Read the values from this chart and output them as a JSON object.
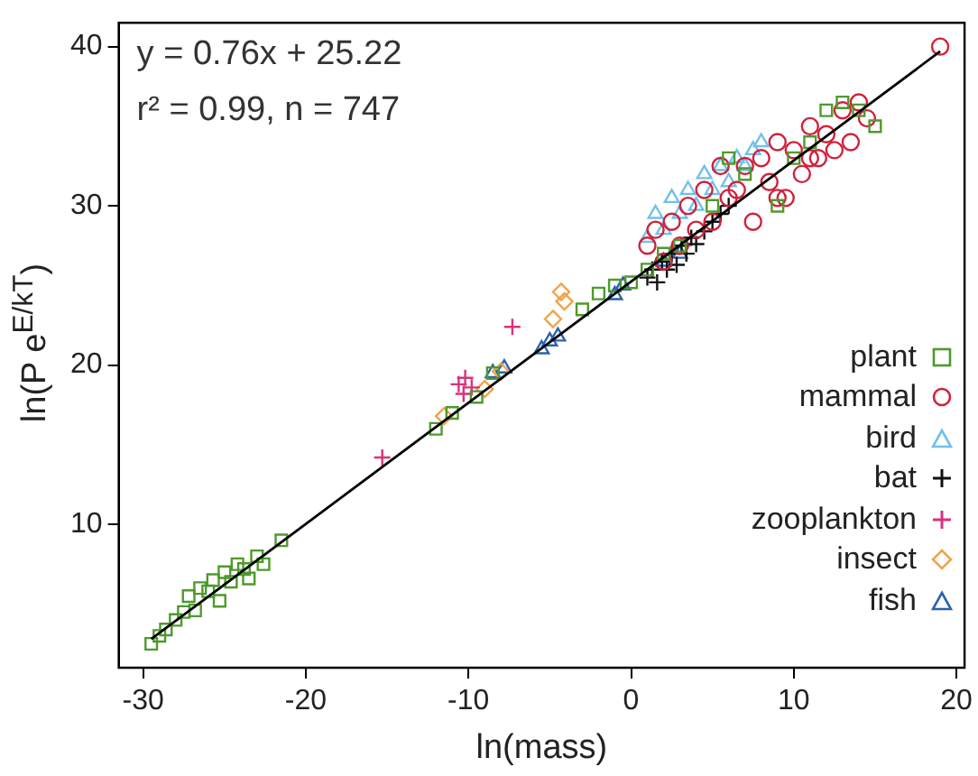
{
  "chart_data": {
    "type": "scatter",
    "xlabel": "ln(mass)",
    "ylabel": "ln(P e$^{E/kT}$)",
    "xlim": [
      -31.5,
      20.5
    ],
    "ylim": [
      1,
      41.5
    ],
    "xticks": [
      -30,
      -20,
      -10,
      0,
      10,
      20
    ],
    "yticks": [
      10,
      20,
      30,
      40
    ],
    "grid": false,
    "legend": "bottom right",
    "annotations": [
      "y = 0.76x + 25.22",
      "r² = 0.99, n = 747"
    ],
    "series": [
      {
        "name": "plant",
        "color": "#4e9a2c",
        "marker": "square",
        "x": [
          -29.5,
          -29,
          -28.6,
          -28,
          -27.5,
          -27.2,
          -26.8,
          -26.5,
          -26,
          -25.7,
          -25.3,
          -25,
          -24.6,
          -24.2,
          -23.8,
          -23.5,
          -23,
          -22.6,
          -21.5,
          -12,
          -11,
          -9.5,
          -8.5,
          -3,
          -2,
          -1,
          0,
          1,
          2,
          3,
          5,
          6,
          7,
          9,
          10,
          11,
          12,
          13,
          14,
          15
        ],
        "values": [
          2.5,
          3,
          3.4,
          4,
          4.5,
          5.5,
          4.6,
          6,
          5.8,
          6.5,
          5.2,
          7,
          6.4,
          7.5,
          7.2,
          6.6,
          8,
          7.5,
          9,
          16,
          17,
          18,
          19.5,
          23.5,
          24.5,
          25,
          25.2,
          26,
          27,
          27.5,
          30,
          33,
          32,
          30,
          33,
          34,
          36,
          36.5,
          36,
          35
        ]
      },
      {
        "name": "mammal",
        "color": "#d0213c",
        "marker": "circle",
        "x": [
          1,
          1.5,
          2,
          2.5,
          3,
          3.5,
          4,
          4.5,
          5,
          5.5,
          6,
          6.5,
          7,
          7.5,
          8,
          8.5,
          9,
          9.5,
          10,
          10.5,
          11,
          11.5,
          12,
          12.5,
          13,
          13.5,
          14,
          14.5,
          9,
          11,
          19
        ],
        "values": [
          27.5,
          28.5,
          26.5,
          29,
          27.5,
          30,
          28.5,
          31,
          29,
          32.5,
          30.5,
          31,
          32.5,
          29,
          33,
          31.5,
          34,
          30.5,
          33.5,
          32,
          35,
          33,
          34.5,
          33.5,
          36,
          34,
          36.5,
          35.5,
          30.5,
          33,
          40
        ]
      },
      {
        "name": "bird",
        "color": "#72c0ea",
        "marker": "triangle",
        "x": [
          1,
          1.5,
          2,
          2.5,
          3,
          3.5,
          4,
          4.5,
          5,
          5.5,
          6,
          6.5,
          7,
          7.5,
          8
        ],
        "values": [
          28,
          29.5,
          28.5,
          30.5,
          29.5,
          31,
          30,
          32,
          31,
          32.5,
          31.5,
          33,
          32.5,
          33.5,
          34
        ]
      },
      {
        "name": "bat",
        "color": "#111111",
        "marker": "cross",
        "x": [
          1,
          1.3,
          1.6,
          1.9,
          2.2,
          2.5,
          2.8,
          3.1,
          3.4,
          3.7,
          4,
          4.5,
          5,
          5.5,
          6
        ],
        "values": [
          25.5,
          26,
          25.2,
          26.5,
          26,
          27,
          26.3,
          27.5,
          27,
          28,
          27.6,
          28.4,
          29,
          29.5,
          30
        ]
      },
      {
        "name": "zooplankton",
        "color": "#d9327d",
        "marker": "cross",
        "x": [
          -15.3,
          -10.6,
          -10.2,
          -9.8,
          -10.3,
          -7.3
        ],
        "values": [
          14.2,
          18.8,
          19.2,
          18.6,
          18.2,
          22.4
        ]
      },
      {
        "name": "insect",
        "color": "#f0a34a",
        "marker": "diamond",
        "x": [
          -11.5,
          -9,
          -8,
          -4.8,
          -4.3,
          -4.1
        ],
        "values": [
          16.8,
          18.5,
          19.6,
          22.9,
          24.6,
          24
        ]
      },
      {
        "name": "fish",
        "color": "#2b62b0",
        "marker": "triangle",
        "x": [
          -8.5,
          -7.8,
          -5.5,
          -5,
          -4.5,
          -1,
          -0.5,
          2,
          3
        ],
        "values": [
          19.5,
          19.8,
          21,
          21.5,
          21.8,
          24.4,
          25,
          26.5,
          27
        ]
      },
      {
        "type": "line",
        "color": "#000000",
        "x": [
          -29.5,
          19
        ],
        "values": [
          2.8,
          39.7
        ]
      }
    ]
  }
}
